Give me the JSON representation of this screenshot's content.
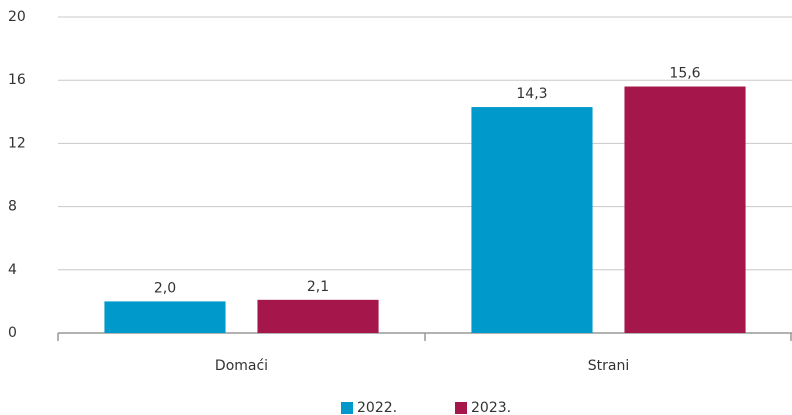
{
  "chart_data": {
    "type": "bar",
    "categories": [
      "Domaći",
      "Strani"
    ],
    "series": [
      {
        "name": "2022.",
        "color": "#0099cc",
        "values": [
          2.0,
          14.3
        ],
        "value_labels": [
          "2,0",
          "14,3"
        ]
      },
      {
        "name": "2023.",
        "color": "#a5174b",
        "values": [
          2.1,
          15.6
        ],
        "value_labels": [
          "2,1",
          "15,6"
        ]
      }
    ],
    "ylim": [
      0,
      20
    ],
    "yticks": [
      0,
      4,
      8,
      12,
      16,
      20
    ],
    "grid": true,
    "legend": "bottom"
  }
}
